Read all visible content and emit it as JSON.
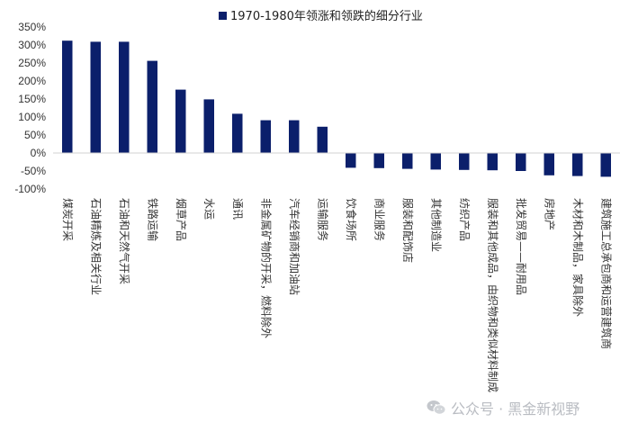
{
  "chart_data": {
    "type": "bar",
    "legend": "1970-1980年领涨和领跌的细分行业",
    "legend_position": "top-center",
    "color": "#0b1f6b",
    "categories": [
      "煤炭开采",
      "石油精炼及相关行业",
      "石油和天然气开采",
      "铁路运输",
      "烟草产品",
      "水运",
      "通讯",
      "非金属矿物的开采，燃料除外",
      "汽车经销商和加油站",
      "运输服务",
      "饮食场所",
      "商业服务",
      "服装和配饰店",
      "其他制造业",
      "纺织产品",
      "服装和其他成品，由织物和类似材料制成",
      "批发贸易——耐用品",
      "房地产",
      "木材和木制品，家具除外",
      "建筑施工总承包商和运营建筑商"
    ],
    "values": [
      312,
      309,
      309,
      256,
      176,
      149,
      109,
      91,
      91,
      73,
      -41,
      -42,
      -44,
      -46,
      -47,
      -48,
      -50,
      -62,
      -64,
      -66
    ],
    "yticks": [
      "350%",
      "300%",
      "250%",
      "200%",
      "150%",
      "100%",
      "50%",
      "0%",
      "-50%",
      "-100%"
    ],
    "ylim": [
      -100,
      350
    ],
    "grid": false
  },
  "watermark": {
    "text": "公众号 · 黑金新视野",
    "icon": "wechat-icon"
  }
}
